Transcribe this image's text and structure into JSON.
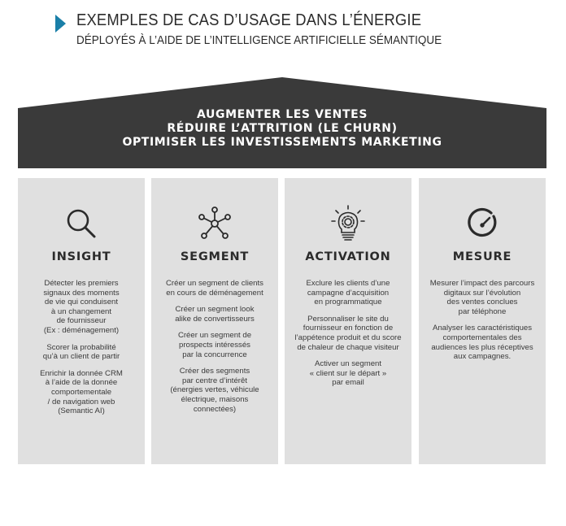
{
  "header": {
    "title": "EXEMPLES DE CAS D’USAGE DANS L’ÉNERGIE",
    "subtitle": "DÉPLOYÉS À L’AIDE DE L’INTELLIGENCE ARTIFICIELLE SÉMANTIQUE"
  },
  "colors": {
    "accent": "#1a7fa8",
    "roof": "#3a3a3a",
    "pillar": "#e0e0e0"
  },
  "roof": {
    "lines": [
      "AUGMENTER LES VENTES",
      "RÉDUIRE L’ATTRITION (LE CHURN)",
      "OPTIMISER LES INVESTISSEMENTS MARKETING"
    ]
  },
  "pillars": [
    {
      "icon": "magnifier-icon",
      "title": "INSIGHT",
      "paragraphs": [
        [
          "Détecter les premiers",
          "signaux des moments",
          "de vie qui conduisent",
          "à un changement",
          "de fournisseur",
          "(Ex : déménagement)"
        ],
        [
          "Scorer la probabilité",
          "qu’à un client de partir"
        ],
        [
          "Enrichir la donnée CRM",
          "à l’aide de la donnée",
          "comportementale",
          "/ de navigation web",
          "(Semantic AI)"
        ]
      ]
    },
    {
      "icon": "network-nodes-icon",
      "title": "SEGMENT",
      "paragraphs": [
        [
          "Créer un segment de clients",
          "en cours de déménagement"
        ],
        [
          "Créer un segment look",
          "alike de convertisseurs"
        ],
        [
          "Créer un segment de",
          "prospects intéressés",
          "par la concurrence"
        ],
        [
          "Créer des segments",
          "par centre d’intérêt",
          "(énergies vertes, véhicule",
          "électrique, maisons",
          "connectées)"
        ]
      ]
    },
    {
      "icon": "lightbulb-gear-icon",
      "title": "ACTIVATION",
      "paragraphs": [
        [
          "Exclure les clients d’une",
          "campagne d’acquisition",
          "en programmatique"
        ],
        [
          "Personnaliser le site du",
          "fournisseur en fonction de",
          "l’appétence produit et du score",
          "de chaleur de chaque visiteur"
        ],
        [
          "Activer un segment",
          "« client sur le départ »",
          "par email"
        ]
      ]
    },
    {
      "icon": "gauge-icon",
      "title": "MESURE",
      "paragraphs": [
        [
          "Mesurer l’impact des parcours",
          "digitaux sur l’évolution",
          "des ventes conclues",
          "par téléphone"
        ],
        [
          "Analyser les caractéristiques",
          "comportementales des",
          "audiences les plus réceptives",
          "aux campagnes."
        ]
      ]
    }
  ]
}
